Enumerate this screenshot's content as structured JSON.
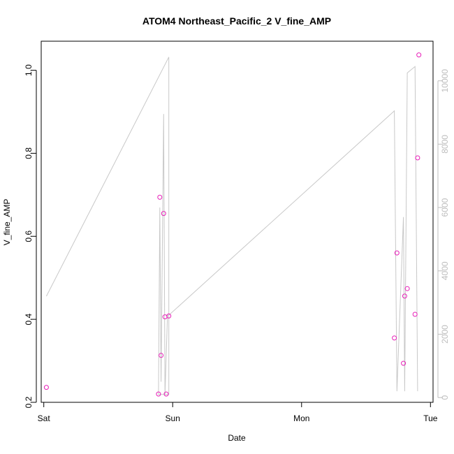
{
  "chart_data": {
    "type": "scatter",
    "title": "ATOM4 Northeast_Pacific_2 V_fine_AMP",
    "xlabel": "Date",
    "ylabel": "V_fine_AMP",
    "x_ticks": [
      "Sat",
      "Sun",
      "Mon",
      "Tue"
    ],
    "xlim_days": [
      -0.02,
      3.02
    ],
    "ylim": [
      0.2,
      1.07
    ],
    "y_ticks": [
      "0.2",
      "0.4",
      "0.6",
      "0.8",
      "1.0"
    ],
    "y_right_ticks": [
      "0",
      "2000",
      "4000",
      "6000",
      "8000",
      "10000"
    ],
    "ylim_right": [
      -150,
      11250
    ],
    "grid": false,
    "colors": {
      "points": "#e81fb9",
      "line": "#c8c8c8",
      "right_axis": "#bdbdbd"
    },
    "series": [
      {
        "type": "points",
        "axis": "left",
        "x_days": [
          0.02,
          0.89,
          0.9,
          0.91,
          0.93,
          0.94,
          0.95,
          0.97,
          2.72,
          2.74,
          2.79,
          2.8,
          2.82,
          2.88,
          2.9,
          2.91
        ],
        "y": [
          0.236,
          0.22,
          0.694,
          0.313,
          0.655,
          0.406,
          0.22,
          0.408,
          0.355,
          0.56,
          0.294,
          0.456,
          0.474,
          0.412,
          0.789,
          1.037
        ]
      },
      {
        "type": "line",
        "axis": "right",
        "x_days": [
          0.02,
          0.97,
          0.97,
          0.89,
          0.9,
          0.91,
          0.93,
          0.94,
          0.96,
          0.97,
          2.72,
          2.74,
          2.79,
          2.8,
          2.82,
          2.88,
          2.9
        ],
        "y": [
          3200,
          10750,
          100,
          100,
          6000,
          500,
          8950,
          100,
          2600,
          2600,
          9050,
          200,
          5700,
          200,
          10250,
          10450,
          200
        ]
      }
    ]
  }
}
